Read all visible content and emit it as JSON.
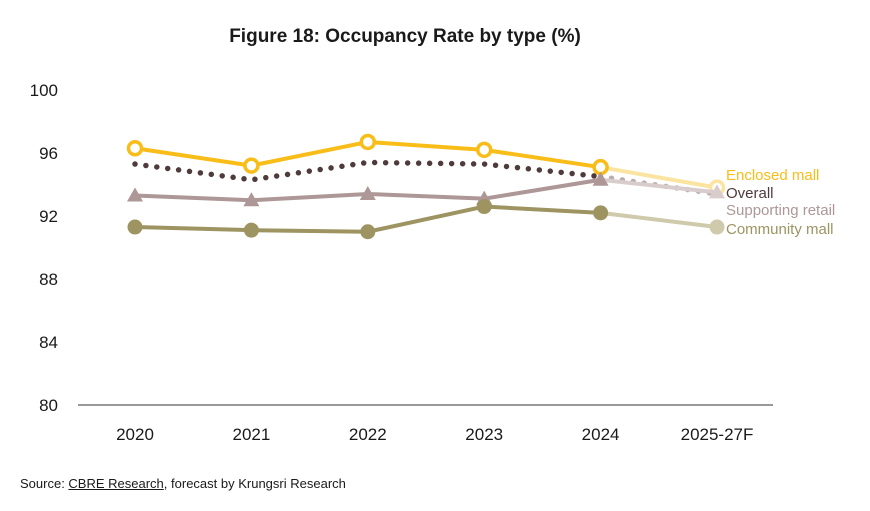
{
  "chart_data": {
    "type": "line",
    "title": "Figure 18: Occupancy Rate by type (%)",
    "categories": [
      "2020",
      "2021",
      "2022",
      "2023",
      "2024",
      "2025-27F"
    ],
    "ylim": [
      80,
      100
    ],
    "yticks": [
      80,
      84,
      88,
      92,
      96,
      100
    ],
    "grid": false,
    "legend": "right",
    "series": [
      {
        "name": "Enclosed mall",
        "values": [
          96.3,
          95.2,
          96.7,
          96.2,
          95.1,
          93.8
        ],
        "color": "#f9bd19",
        "faded_color": "#fbe4a0",
        "marker": "open-circle",
        "line": "solid"
      },
      {
        "name": "Overall",
        "values": [
          95.3,
          94.3,
          95.4,
          95.3,
          94.5,
          93.4
        ],
        "color": "#4f3b3b",
        "faded_color": "#b9aeae",
        "marker": "none",
        "line": "dotted"
      },
      {
        "name": "Supporting retail",
        "values": [
          93.3,
          93.0,
          93.4,
          93.1,
          94.3,
          93.5
        ],
        "color": "#ae9797",
        "faded_color": "#d9cccc",
        "marker": "triangle",
        "line": "solid"
      },
      {
        "name": "Community mall",
        "values": [
          91.3,
          91.1,
          91.0,
          92.6,
          92.2,
          91.3
        ],
        "color": "#9d9462",
        "faded_color": "#cfcaac",
        "marker": "filled-circle",
        "line": "solid"
      }
    ]
  },
  "source": {
    "prefix": "Source: ",
    "link": "CBRE Research",
    "suffix": ", forecast by Krungsri Research"
  }
}
